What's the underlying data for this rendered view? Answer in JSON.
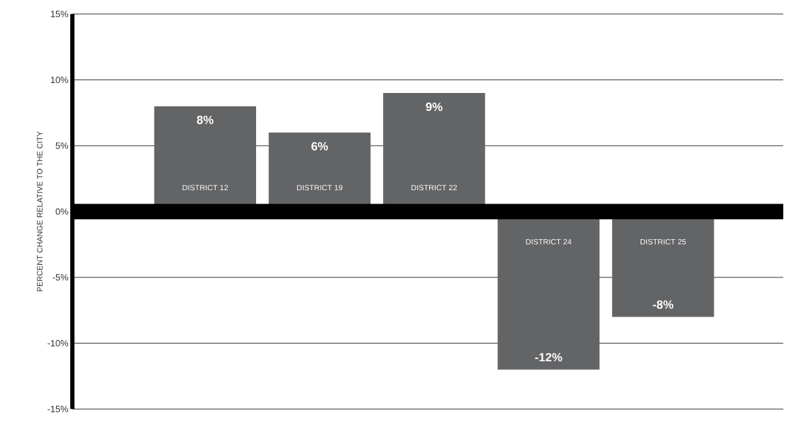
{
  "chart_data": {
    "type": "bar",
    "ylabel": "PERCENT CHANGE RELATIVE TO THE CITY",
    "categories": [
      "DISTRICT 12",
      "DISTRICT 19",
      "DISTRICT 22",
      "DISTRICT 24",
      "DISTRICT 25"
    ],
    "values": [
      8,
      6,
      9,
      -12,
      -8
    ],
    "value_labels": [
      "8%",
      "6%",
      "9%",
      "-12%",
      "-8%"
    ],
    "color": "#636466",
    "ylim": [
      -15,
      15
    ],
    "yticks": [
      {
        "value": -15,
        "label": "-15%"
      },
      {
        "value": -10,
        "label": "-10%"
      },
      {
        "value": -5,
        "label": "-5%"
      },
      {
        "value": 0,
        "label": "0%"
      },
      {
        "value": 5,
        "label": "5%"
      },
      {
        "value": 10,
        "label": "10%"
      },
      {
        "value": 15,
        "label": "15%"
      }
    ],
    "grid": "y"
  }
}
